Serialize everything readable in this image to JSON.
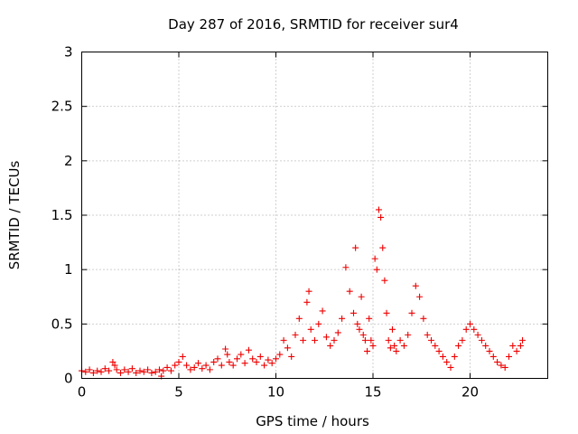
{
  "chart_data": {
    "type": "scatter",
    "title": "Day 287 of 2016, SRMTID for receiver sur4",
    "xlabel": "GPS time / hours",
    "ylabel": "SRMTID / TECUs",
    "xlim": [
      0,
      24
    ],
    "ylim": [
      0,
      3
    ],
    "xticks": [
      0,
      5,
      10,
      15,
      20
    ],
    "xtick_labels": [
      "0",
      "5",
      "10",
      "15",
      "20"
    ],
    "yticks": [
      0,
      0.5,
      1,
      1.5,
      2,
      2.5,
      3
    ],
    "ytick_labels": [
      "0",
      "0.5",
      "1",
      "1.5",
      "2",
      "2.5",
      "3"
    ],
    "grid": true,
    "marker": "+",
    "series": [
      {
        "name": "SRMTID",
        "color": "#ee0000",
        "points": [
          [
            0.0,
            0.07
          ],
          [
            0.2,
            0.06
          ],
          [
            0.4,
            0.08
          ],
          [
            0.6,
            0.05
          ],
          [
            0.8,
            0.07
          ],
          [
            1.0,
            0.06
          ],
          [
            1.2,
            0.09
          ],
          [
            1.4,
            0.07
          ],
          [
            1.6,
            0.15
          ],
          [
            1.7,
            0.12
          ],
          [
            1.8,
            0.08
          ],
          [
            2.0,
            0.05
          ],
          [
            2.2,
            0.08
          ],
          [
            2.4,
            0.06
          ],
          [
            2.6,
            0.09
          ],
          [
            2.8,
            0.05
          ],
          [
            3.0,
            0.07
          ],
          [
            3.2,
            0.06
          ],
          [
            3.4,
            0.08
          ],
          [
            3.6,
            0.05
          ],
          [
            3.8,
            0.06
          ],
          [
            4.0,
            0.08
          ],
          [
            4.1,
            0.02
          ],
          [
            4.2,
            0.07
          ],
          [
            4.4,
            0.1
          ],
          [
            4.6,
            0.07
          ],
          [
            4.8,
            0.12
          ],
          [
            5.0,
            0.15
          ],
          [
            5.2,
            0.2
          ],
          [
            5.4,
            0.12
          ],
          [
            5.6,
            0.08
          ],
          [
            5.8,
            0.1
          ],
          [
            6.0,
            0.14
          ],
          [
            6.2,
            0.09
          ],
          [
            6.4,
            0.12
          ],
          [
            6.6,
            0.08
          ],
          [
            6.8,
            0.15
          ],
          [
            7.0,
            0.18
          ],
          [
            7.2,
            0.12
          ],
          [
            7.4,
            0.27
          ],
          [
            7.5,
            0.22
          ],
          [
            7.6,
            0.15
          ],
          [
            7.8,
            0.12
          ],
          [
            8.0,
            0.18
          ],
          [
            8.2,
            0.22
          ],
          [
            8.4,
            0.14
          ],
          [
            8.6,
            0.26
          ],
          [
            8.8,
            0.18
          ],
          [
            9.0,
            0.15
          ],
          [
            9.2,
            0.2
          ],
          [
            9.4,
            0.12
          ],
          [
            9.6,
            0.17
          ],
          [
            9.8,
            0.14
          ],
          [
            10.0,
            0.18
          ],
          [
            10.2,
            0.22
          ],
          [
            10.4,
            0.35
          ],
          [
            10.6,
            0.28
          ],
          [
            10.8,
            0.2
          ],
          [
            11.0,
            0.4
          ],
          [
            11.2,
            0.55
          ],
          [
            11.4,
            0.35
          ],
          [
            11.6,
            0.7
          ],
          [
            11.7,
            0.8
          ],
          [
            11.8,
            0.45
          ],
          [
            12.0,
            0.35
          ],
          [
            12.2,
            0.5
          ],
          [
            12.4,
            0.62
          ],
          [
            12.6,
            0.38
          ],
          [
            12.8,
            0.3
          ],
          [
            13.0,
            0.35
          ],
          [
            13.2,
            0.42
          ],
          [
            13.4,
            0.55
          ],
          [
            13.6,
            1.02
          ],
          [
            13.8,
            0.8
          ],
          [
            14.0,
            0.6
          ],
          [
            14.1,
            1.2
          ],
          [
            14.2,
            0.5
          ],
          [
            14.3,
            0.45
          ],
          [
            14.4,
            0.75
          ],
          [
            14.5,
            0.4
          ],
          [
            14.6,
            0.35
          ],
          [
            14.7,
            0.25
          ],
          [
            14.8,
            0.55
          ],
          [
            14.9,
            0.35
          ],
          [
            15.0,
            0.3
          ],
          [
            15.1,
            1.1
          ],
          [
            15.2,
            1.0
          ],
          [
            15.3,
            1.55
          ],
          [
            15.4,
            1.48
          ],
          [
            15.5,
            1.2
          ],
          [
            15.6,
            0.9
          ],
          [
            15.7,
            0.6
          ],
          [
            15.8,
            0.35
          ],
          [
            15.9,
            0.28
          ],
          [
            16.0,
            0.45
          ],
          [
            16.1,
            0.3
          ],
          [
            16.2,
            0.25
          ],
          [
            16.4,
            0.35
          ],
          [
            16.6,
            0.3
          ],
          [
            16.8,
            0.4
          ],
          [
            17.0,
            0.6
          ],
          [
            17.2,
            0.85
          ],
          [
            17.4,
            0.75
          ],
          [
            17.6,
            0.55
          ],
          [
            17.8,
            0.4
          ],
          [
            18.0,
            0.35
          ],
          [
            18.2,
            0.3
          ],
          [
            18.4,
            0.25
          ],
          [
            18.6,
            0.2
          ],
          [
            18.8,
            0.15
          ],
          [
            19.0,
            0.1
          ],
          [
            19.2,
            0.2
          ],
          [
            19.4,
            0.3
          ],
          [
            19.6,
            0.35
          ],
          [
            19.8,
            0.45
          ],
          [
            20.0,
            0.5
          ],
          [
            20.2,
            0.45
          ],
          [
            20.4,
            0.4
          ],
          [
            20.6,
            0.35
          ],
          [
            20.8,
            0.3
          ],
          [
            21.0,
            0.25
          ],
          [
            21.2,
            0.2
          ],
          [
            21.4,
            0.15
          ],
          [
            21.6,
            0.12
          ],
          [
            21.8,
            0.1
          ],
          [
            22.0,
            0.2
          ],
          [
            22.2,
            0.3
          ],
          [
            22.4,
            0.25
          ],
          [
            22.6,
            0.3
          ],
          [
            22.7,
            0.35
          ]
        ]
      }
    ]
  }
}
